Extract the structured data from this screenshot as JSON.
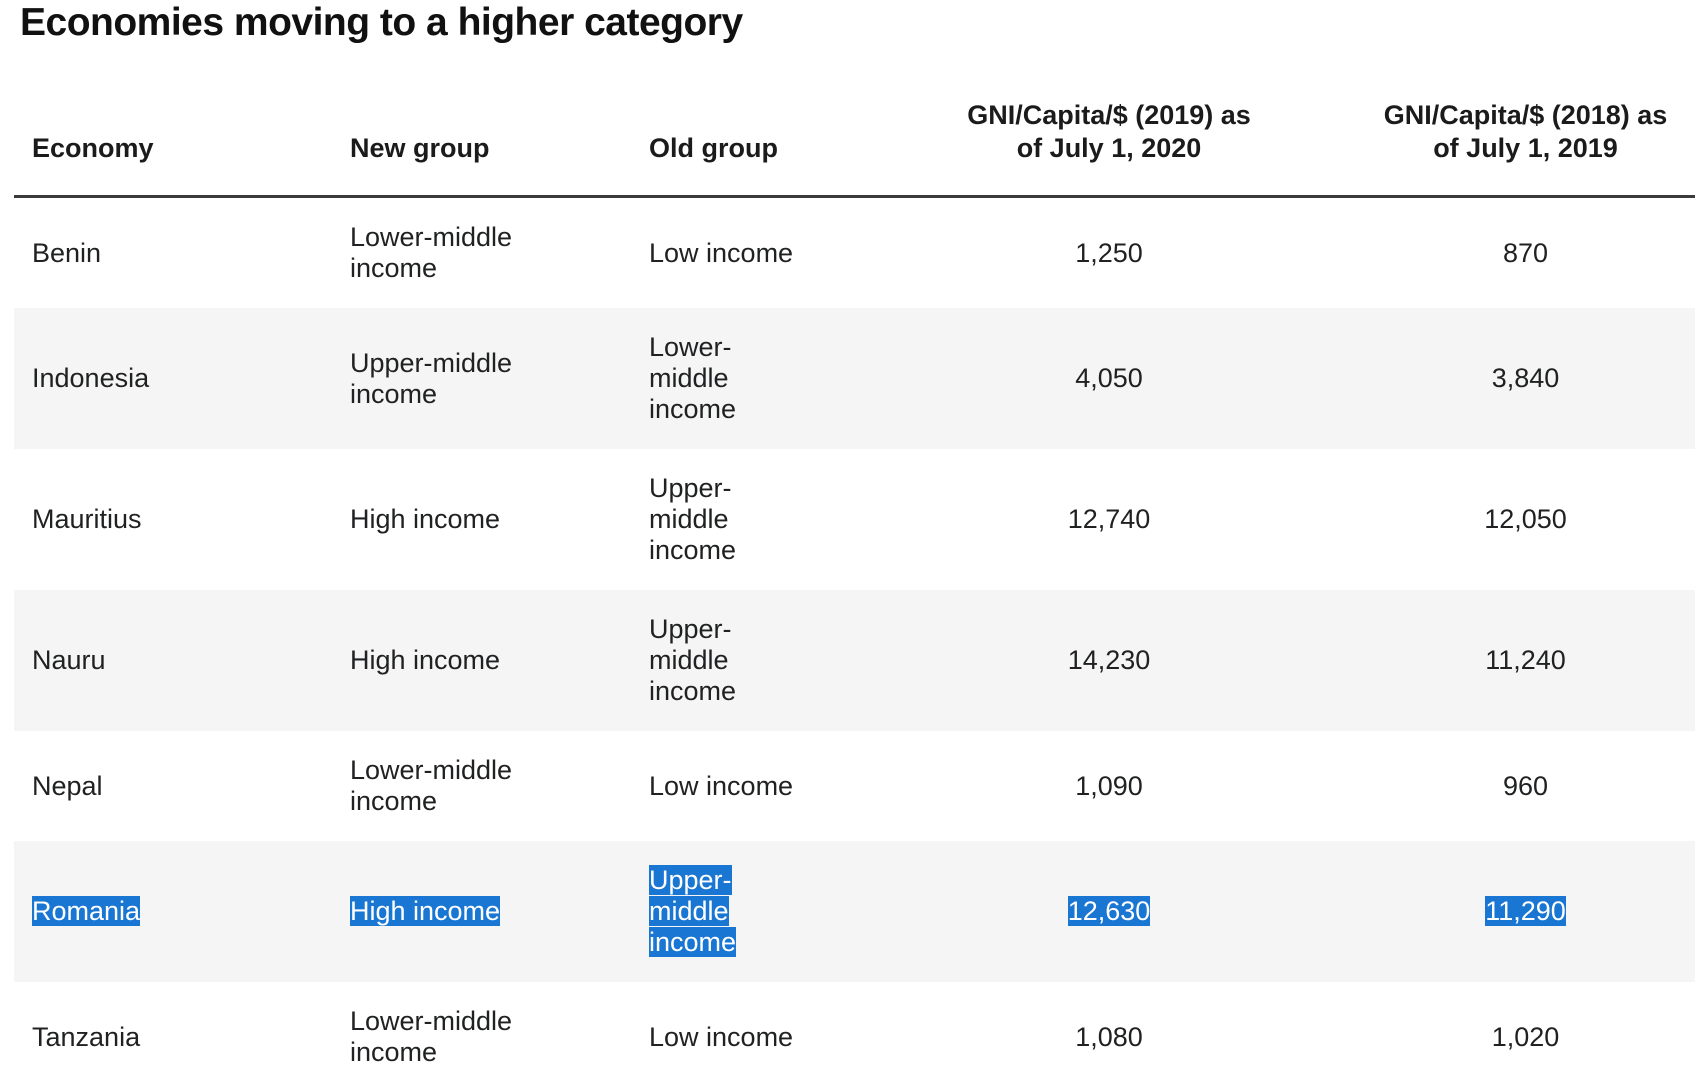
{
  "page": {
    "title": "Economies moving to a higher category"
  },
  "colors": {
    "selection_bg": "#1976d2",
    "selection_text": "#ffffff",
    "row_alt_bg": "#f5f5f5",
    "header_rule": "#3b3b3b",
    "text": "#202122",
    "background": "#ffffff"
  },
  "table": {
    "headers": [
      {
        "id": "economy",
        "label": "Economy",
        "align": "left"
      },
      {
        "id": "new_group",
        "label": "New group",
        "align": "left"
      },
      {
        "id": "old_group",
        "label": "Old group",
        "align": "left"
      },
      {
        "id": "gni_2019",
        "label": "GNI/Capita/$ (2019) as of July 1, 2020",
        "line1": "GNI/Capita/$ (2019) as",
        "line2": "of July 1, 2020",
        "align": "center"
      },
      {
        "id": "gni_2018",
        "label": "GNI/Capita/$ (2018) as of July 1, 2019",
        "line1": "GNI/Capita/$ (2018) as",
        "line2": "of July 1, 2019",
        "align": "center"
      }
    ],
    "rows": [
      {
        "economy": "Benin",
        "new_group": "Lower-middle income",
        "old_group": "Low income",
        "gni_2019": "1,250",
        "gni_2018": "870",
        "selected": false
      },
      {
        "economy": "Indonesia",
        "new_group": "Upper-middle income",
        "old_group": "Lower-middle income",
        "gni_2019": "4,050",
        "gni_2018": "3,840",
        "selected": false
      },
      {
        "economy": "Mauritius",
        "new_group": "High income",
        "old_group": "Upper-middle income",
        "gni_2019": "12,740",
        "gni_2018": "12,050",
        "selected": false
      },
      {
        "economy": "Nauru",
        "new_group": "High income",
        "old_group": "Upper-middle income",
        "gni_2019": "14,230",
        "gni_2018": "11,240",
        "selected": false
      },
      {
        "economy": "Nepal",
        "new_group": "Lower-middle income",
        "old_group": "Low income",
        "gni_2019": "1,090",
        "gni_2018": "960",
        "selected": false
      },
      {
        "economy": "Romania",
        "new_group": "High income",
        "old_group": "Upper-middle income",
        "gni_2019": "12,630",
        "gni_2018": "11,290",
        "selected": true
      },
      {
        "economy": "Tanzania",
        "new_group": "Lower-middle income",
        "old_group": "Low income",
        "gni_2019": "1,080",
        "gni_2018": "1,020",
        "selected": false
      }
    ]
  }
}
